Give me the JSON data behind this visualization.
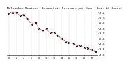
{
  "title": "Milwaukee Weather  Barometric Pressure per Hour (Last 24 Hours)",
  "x_values": [
    0,
    1,
    2,
    3,
    4,
    5,
    6,
    7,
    8,
    9,
    10,
    11,
    12,
    13,
    14,
    15,
    16,
    17,
    18,
    19,
    20,
    21,
    22,
    23
  ],
  "y_values": [
    30.08,
    30.11,
    30.09,
    30.04,
    30.06,
    29.98,
    29.87,
    29.91,
    29.8,
    29.75,
    29.78,
    29.7,
    29.72,
    29.65,
    29.6,
    29.55,
    29.52,
    29.5,
    29.47,
    29.45,
    29.43,
    29.41,
    29.38,
    29.35
  ],
  "line_color": "#dd0000",
  "marker_color": "#000000",
  "bg_color": "#ffffff",
  "grid_color": "#888888",
  "title_fontsize": 3.2,
  "tick_fontsize": 2.5,
  "ylim": [
    29.28,
    30.16
  ],
  "xlim": [
    -0.5,
    23.5
  ],
  "yticks": [
    29.3,
    29.4,
    29.5,
    29.6,
    29.7,
    29.8,
    29.9,
    30.0,
    30.1
  ],
  "ytick_labels": [
    "29.3",
    "29.4",
    "29.5",
    "29.6",
    "29.7",
    "29.8",
    "29.9",
    "30.0",
    "30.1"
  ],
  "vgrid_positions": [
    0,
    2,
    4,
    6,
    8,
    10,
    12,
    14,
    16,
    18,
    20,
    22
  ],
  "xtick_positions": [
    0,
    2,
    4,
    6,
    8,
    10,
    12,
    14,
    16,
    18,
    20,
    22
  ]
}
